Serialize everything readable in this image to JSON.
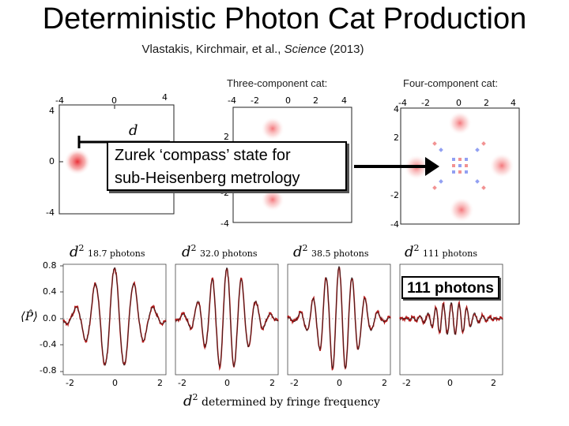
{
  "title": "Deterministic Photon Cat Production",
  "citation": {
    "authors": "Vlastakis, Kirchmair, et al., ",
    "journal": "Science",
    "year": " (2013)"
  },
  "wigner": {
    "three_label": "Three-component cat:",
    "four_label": "Four-component cat:",
    "left_ticks": {
      "top": [
        "-4",
        "0",
        "4"
      ],
      "side": [
        "4",
        "0",
        "-4"
      ]
    },
    "axis_ticks": [
      "-4",
      "-2",
      "0",
      "2",
      "4"
    ],
    "four_side_ticks": [
      "4",
      "2",
      "0",
      "-2",
      "-4"
    ],
    "d_symbol": "d"
  },
  "callout": {
    "line1": "Zurek ‘compass’ state for",
    "line2": "sub-Heisenberg metrology"
  },
  "badge": "111 photons",
  "fringes": {
    "y_symbol": "⟨P̂⟩",
    "y_ticks": [
      "0.8",
      "0.4",
      "0.0",
      "-0.4",
      "-0.8"
    ],
    "x_ticks": [
      "-2",
      "0",
      "2"
    ],
    "panels": [
      {
        "d2": "d",
        "photons": "18.7 photons"
      },
      {
        "d2": "d",
        "photons": "32.0 photons"
      },
      {
        "d2": "d",
        "photons": "38.5 photons"
      },
      {
        "d2": "d",
        "photons": "111 photons"
      }
    ],
    "footer": "determined by fringe frequency",
    "footer_symbol": "d"
  },
  "colors": {
    "red": "#e0202a",
    "blue": "#2a3fd0",
    "fit": "#b01818"
  }
}
